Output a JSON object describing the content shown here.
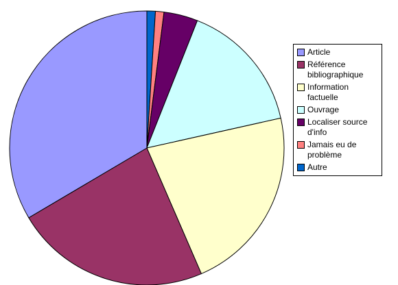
{
  "chart_data": {
    "type": "pie",
    "title": "",
    "legend_position": "right",
    "start_angle_deg": 0,
    "direction": "clockwise",
    "slices": [
      {
        "label": "Autre",
        "value": 1.0,
        "color": "#0066CC"
      },
      {
        "label": "Jamais eu de problème",
        "value": 1.0,
        "color": "#FF8080"
      },
      {
        "label": "Localiser source d'info",
        "value": 4.0,
        "color": "#660066"
      },
      {
        "label": "Ouvrage",
        "value": 15.5,
        "color": "#CCFFFF"
      },
      {
        "label": "Information factuelle",
        "value": 22.0,
        "color": "#FFFFCC"
      },
      {
        "label": "Référence bibliographique",
        "value": 23.0,
        "color": "#993366"
      },
      {
        "label": "Article",
        "value": 33.5,
        "color": "#9999FF"
      }
    ],
    "legend": [
      {
        "label": "Article",
        "color": "#9999FF"
      },
      {
        "label": "Référence bibliographique",
        "color": "#993366"
      },
      {
        "label": "Information factuelle",
        "color": "#FFFFCC"
      },
      {
        "label": "Ouvrage",
        "color": "#CCFFFF"
      },
      {
        "label": "Localiser source d'info",
        "color": "#660066"
      },
      {
        "label": "Jamais eu de problème",
        "color": "#FF8080"
      },
      {
        "label": "Autre",
        "color": "#0066CC"
      }
    ]
  }
}
